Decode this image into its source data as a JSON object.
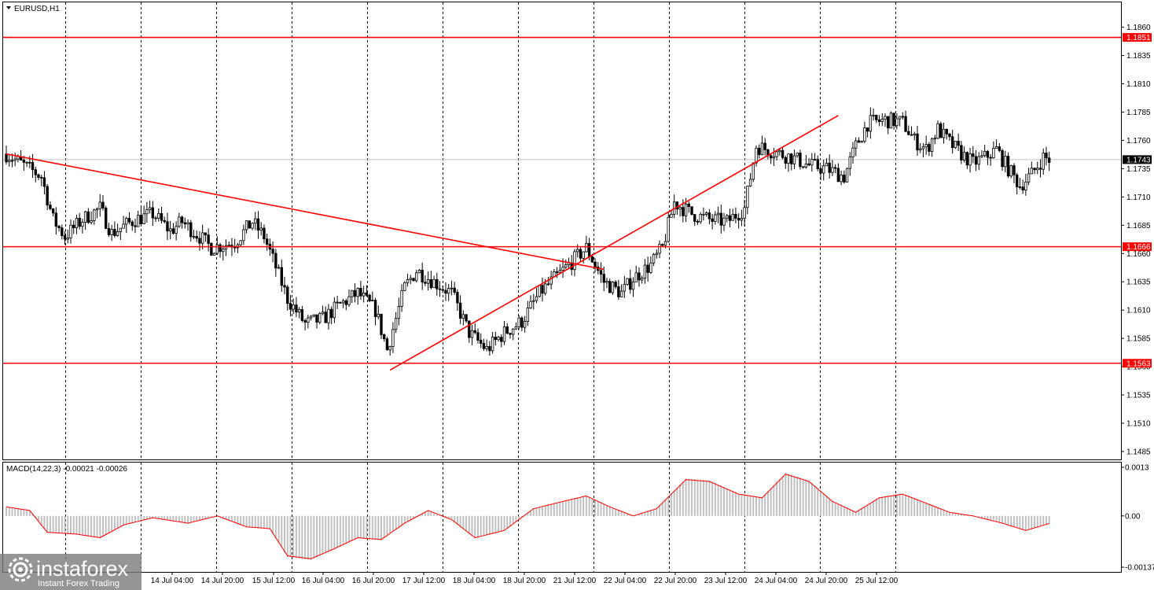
{
  "window": {
    "symbol_title": "EURUSD,H1",
    "indicator_title": "MACD(14,22,3) -0.00021 -0.00026"
  },
  "price_axis": {
    "ticks": [
      "1.1860",
      "1.1835",
      "1.1810",
      "1.1785",
      "1.1760",
      "1.1735",
      "1.1710",
      "1.1685",
      "1.1660",
      "1.1635",
      "1.1610",
      "1.1585",
      "1.1560",
      "1.1535",
      "1.1510",
      "1.1485"
    ]
  },
  "macd_axis": {
    "ticks": [
      "0.0013",
      "0.00",
      "-0.00137"
    ]
  },
  "levels": [
    {
      "label": "1.1851",
      "price": 1.1851
    },
    {
      "label": "1.1666",
      "price": 1.1666
    },
    {
      "label": "1.1563",
      "price": 1.1563
    }
  ],
  "current_price": {
    "label": "1.1743",
    "price": 1.1743
  },
  "time_axis": {
    "labels": [
      "14 Jul 04:00",
      "14 Jul 20:00",
      "15 Jul 12:00",
      "16 Jul 04:00",
      "16 Jul 20:00",
      "17 Jul 12:00",
      "18 Jul 04:00",
      "18 Jul 20:00",
      "21 Jul 12:00",
      "22 Jul 04:00",
      "22 Jul 20:00",
      "23 Jul 12:00",
      "24 Jul 04:00",
      "24 Jul 20:00",
      "25 Jul 12:00"
    ]
  },
  "logo": {
    "brand": "instaforex",
    "tagline": "Instant Forex Trading"
  },
  "colors": {
    "level_line": "#ff0000",
    "trend_line": "#ff0000",
    "candle": "#000000",
    "macd_hist": "#c0c0c0",
    "macd_signal": "#ff0000",
    "current_line": "#c0c0c0"
  },
  "chart_data": {
    "type": "candlestick",
    "symbol": "EURUSD",
    "timeframe": "H1",
    "ylim": [
      1.1478,
      1.1882
    ],
    "macd_ylim": [
      -0.00137,
      0.0013
    ],
    "close_path": [
      [
        0,
        1.1748
      ],
      [
        6,
        1.1738
      ],
      [
        12,
        1.1728
      ],
      [
        16,
        1.169
      ],
      [
        20,
        1.1675
      ],
      [
        26,
        1.169
      ],
      [
        32,
        1.17
      ],
      [
        36,
        1.1678
      ],
      [
        44,
        1.169
      ],
      [
        50,
        1.1695
      ],
      [
        56,
        1.168
      ],
      [
        60,
        1.1688
      ],
      [
        66,
        1.1675
      ],
      [
        70,
        1.1665
      ],
      [
        78,
        1.167
      ],
      [
        84,
        1.1688
      ],
      [
        88,
        1.1675
      ],
      [
        92,
        1.1648
      ],
      [
        96,
        1.162
      ],
      [
        102,
        1.1598
      ],
      [
        108,
        1.1602
      ],
      [
        114,
        1.1615
      ],
      [
        120,
        1.1625
      ],
      [
        126,
        1.161
      ],
      [
        130,
        1.1575
      ],
      [
        136,
        1.163
      ],
      [
        140,
        1.1645
      ],
      [
        146,
        1.1635
      ],
      [
        152,
        1.1625
      ],
      [
        158,
        1.159
      ],
      [
        164,
        1.1575
      ],
      [
        170,
        1.159
      ],
      [
        176,
        1.16
      ],
      [
        182,
        1.1625
      ],
      [
        188,
        1.164
      ],
      [
        194,
        1.1655
      ],
      [
        198,
        1.1665
      ],
      [
        204,
        1.1635
      ],
      [
        210,
        1.1625
      ],
      [
        214,
        1.1638
      ],
      [
        220,
        1.165
      ],
      [
        224,
        1.1665
      ],
      [
        228,
        1.1705
      ],
      [
        234,
        1.1695
      ],
      [
        240,
        1.169
      ],
      [
        246,
        1.1688
      ],
      [
        252,
        1.17
      ],
      [
        256,
        1.1755
      ],
      [
        262,
        1.175
      ],
      [
        268,
        1.1745
      ],
      [
        274,
        1.1738
      ],
      [
        280,
        1.1735
      ],
      [
        286,
        1.1728
      ],
      [
        290,
        1.1755
      ],
      [
        294,
        1.1775
      ],
      [
        300,
        1.1778
      ],
      [
        306,
        1.1776
      ],
      [
        310,
        1.176
      ],
      [
        314,
        1.1752
      ],
      [
        318,
        1.177
      ],
      [
        322,
        1.1758
      ],
      [
        326,
        1.1748
      ],
      [
        330,
        1.174
      ],
      [
        334,
        1.1745
      ],
      [
        338,
        1.1752
      ],
      [
        342,
        1.1735
      ],
      [
        346,
        1.172
      ],
      [
        350,
        1.173
      ],
      [
        354,
        1.1745
      ],
      [
        356,
        1.1743
      ]
    ],
    "macd_path": [
      [
        0,
        0.00025
      ],
      [
        8,
        0.00015
      ],
      [
        14,
        -0.00045
      ],
      [
        24,
        -0.0005
      ],
      [
        32,
        -0.0006
      ],
      [
        40,
        -0.00025
      ],
      [
        50,
        -5e-05
      ],
      [
        62,
        -0.0002
      ],
      [
        72,
        0.0
      ],
      [
        82,
        -0.0003
      ],
      [
        90,
        -0.00035
      ],
      [
        96,
        -0.0011
      ],
      [
        104,
        -0.00118
      ],
      [
        112,
        -0.0009
      ],
      [
        120,
        -0.0006
      ],
      [
        128,
        -0.00065
      ],
      [
        136,
        -0.0002
      ],
      [
        144,
        0.00015
      ],
      [
        152,
        -0.0001
      ],
      [
        160,
        -0.0006
      ],
      [
        170,
        -0.0004
      ],
      [
        180,
        0.0002
      ],
      [
        190,
        0.0004
      ],
      [
        198,
        0.00055
      ],
      [
        206,
        0.00025
      ],
      [
        214,
        0.0
      ],
      [
        222,
        0.0002
      ],
      [
        232,
        0.001
      ],
      [
        240,
        0.00095
      ],
      [
        250,
        0.0006
      ],
      [
        258,
        0.0005
      ],
      [
        266,
        0.00115
      ],
      [
        274,
        0.00095
      ],
      [
        282,
        0.0004
      ],
      [
        290,
        0.0001
      ],
      [
        298,
        0.0005
      ],
      [
        306,
        0.0006
      ],
      [
        314,
        0.00035
      ],
      [
        322,
        0.0001
      ],
      [
        330,
        0.0
      ],
      [
        340,
        -0.0002
      ],
      [
        348,
        -0.0004
      ],
      [
        356,
        -0.00021
      ]
    ],
    "trendlines": [
      {
        "name": "descending",
        "from": [
          0,
          1.1748
        ],
        "to": [
          204,
          1.1646
        ]
      },
      {
        "name": "ascending",
        "from": [
          131,
          1.1557
        ],
        "to": [
          284,
          1.1782
        ]
      }
    ]
  }
}
